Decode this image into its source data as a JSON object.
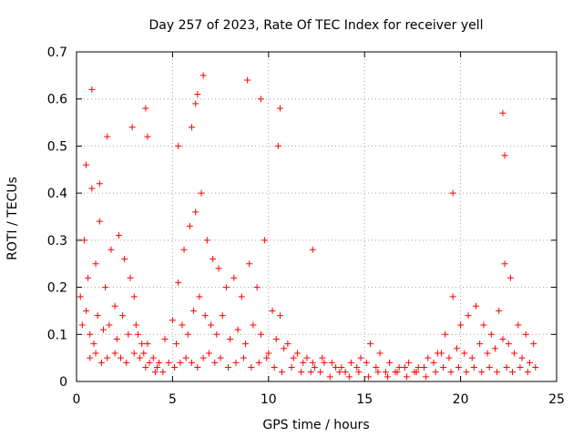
{
  "chart_data": {
    "type": "scatter",
    "title": "Day 257 of 2023, Rate Of TEC Index for receiver yell",
    "xlabel": "GPS time / hours",
    "ylabel": "ROTI / TECUs",
    "xlim": [
      0,
      25
    ],
    "ylim": [
      0,
      0.7
    ],
    "xticks": [
      0,
      5,
      10,
      15,
      20,
      25
    ],
    "yticks": [
      0,
      0.1,
      0.2,
      0.3,
      0.4,
      0.5,
      0.6,
      0.7
    ],
    "grid": true,
    "legend": "none",
    "series": [
      {
        "name": "ROTI",
        "color": "#ff0000",
        "marker": "plus",
        "x": [
          0.2,
          0.4,
          0.6,
          0.8,
          1.0,
          1.2,
          1.5,
          1.8,
          2.0,
          2.2,
          2.5,
          2.8,
          3.0,
          3.2,
          3.5,
          3.7,
          4.0,
          4.3,
          4.6,
          5.0,
          5.3,
          5.6,
          5.9,
          6.2,
          6.5,
          6.8,
          7.1,
          7.4,
          7.8,
          8.2,
          8.6,
          9.0,
          9.4,
          9.8,
          10.2,
          10.6,
          11.0,
          11.5,
          12.0,
          12.3,
          12.8,
          13.3,
          13.8,
          14.3,
          14.8,
          15.3,
          15.8,
          16.3,
          16.8,
          17.3,
          17.8,
          18.3,
          18.8,
          19.2,
          19.6,
          20.0,
          20.4,
          20.8,
          21.2,
          21.6,
          22.0,
          22.3,
          22.6,
          23.0,
          23.4,
          23.8,
          0.3,
          0.5,
          0.7,
          0.9,
          1.1,
          1.4,
          1.7,
          2.1,
          2.4,
          2.7,
          3.1,
          3.4,
          3.8,
          4.2,
          4.8,
          5.2,
          5.5,
          5.8,
          6.1,
          6.4,
          6.7,
          7.0,
          7.3,
          7.6,
          8.0,
          8.4,
          8.8,
          9.2,
          9.6,
          10.0,
          10.4,
          10.8,
          11.3,
          11.8,
          12.4,
          12.9,
          13.5,
          14.0,
          14.6,
          15.1,
          15.6,
          16.1,
          16.6,
          17.1,
          17.6,
          18.1,
          18.6,
          19.0,
          19.4,
          19.8,
          20.2,
          20.6,
          21.0,
          21.4,
          21.8,
          22.2,
          22.5,
          22.8,
          23.2,
          23.6,
          0.7,
          1.0,
          1.3,
          1.6,
          2.0,
          2.3,
          2.6,
          3.0,
          3.3,
          3.6,
          4.1,
          4.5,
          5.1,
          5.4,
          5.7,
          6.0,
          6.3,
          6.6,
          6.9,
          7.2,
          7.5,
          7.9,
          8.3,
          8.7,
          9.1,
          9.5,
          9.9,
          10.3,
          10.7,
          11.2,
          11.7,
          12.2,
          12.7,
          13.2,
          13.7,
          14.2,
          14.7,
          15.2,
          15.7,
          16.2,
          16.7,
          17.2,
          17.7,
          18.2,
          18.7,
          19.1,
          19.5,
          19.9,
          20.3,
          20.7,
          21.1,
          21.5,
          21.9,
          22.4,
          22.7,
          23.1,
          23.5,
          23.9,
          0.8,
          1.6,
          2.9,
          3.6,
          3.7,
          6.2,
          6.3,
          6.6,
          8.9,
          9.6,
          10.5,
          10.6,
          12.3,
          19.6,
          22.2,
          22.3,
          6.0,
          5.3,
          0.5,
          1.2
        ],
        "y": [
          0.18,
          0.3,
          0.22,
          0.41,
          0.25,
          0.34,
          0.2,
          0.28,
          0.16,
          0.31,
          0.26,
          0.22,
          0.18,
          0.1,
          0.06,
          0.08,
          0.05,
          0.04,
          0.09,
          0.13,
          0.21,
          0.28,
          0.33,
          0.36,
          0.4,
          0.3,
          0.26,
          0.24,
          0.2,
          0.22,
          0.18,
          0.25,
          0.2,
          0.3,
          0.15,
          0.14,
          0.08,
          0.06,
          0.05,
          0.04,
          0.05,
          0.04,
          0.03,
          0.04,
          0.05,
          0.08,
          0.06,
          0.04,
          0.03,
          0.04,
          0.03,
          0.05,
          0.06,
          0.1,
          0.18,
          0.12,
          0.14,
          0.16,
          0.12,
          0.1,
          0.15,
          0.25,
          0.22,
          0.12,
          0.1,
          0.08,
          0.12,
          0.15,
          0.1,
          0.08,
          0.14,
          0.11,
          0.12,
          0.09,
          0.14,
          0.1,
          0.12,
          0.08,
          0.04,
          0.03,
          0.04,
          0.08,
          0.12,
          0.1,
          0.15,
          0.18,
          0.14,
          0.12,
          0.1,
          0.14,
          0.09,
          0.11,
          0.08,
          0.12,
          0.1,
          0.06,
          0.09,
          0.07,
          0.05,
          0.04,
          0.03,
          0.04,
          0.03,
          0.02,
          0.03,
          0.04,
          0.03,
          0.02,
          0.02,
          0.03,
          0.02,
          0.03,
          0.04,
          0.06,
          0.05,
          0.07,
          0.06,
          0.05,
          0.08,
          0.06,
          0.07,
          0.09,
          0.08,
          0.06,
          0.05,
          0.04,
          0.05,
          0.06,
          0.04,
          0.05,
          0.06,
          0.05,
          0.04,
          0.06,
          0.05,
          0.03,
          0.02,
          0.02,
          0.03,
          0.04,
          0.05,
          0.04,
          0.03,
          0.05,
          0.06,
          0.04,
          0.05,
          0.03,
          0.04,
          0.05,
          0.03,
          0.04,
          0.05,
          0.03,
          0.02,
          0.03,
          0.02,
          0.02,
          0.02,
          0.01,
          0.02,
          0.01,
          0.02,
          0.01,
          0.02,
          0.01,
          0.02,
          0.01,
          0.02,
          0.01,
          0.02,
          0.03,
          0.02,
          0.03,
          0.02,
          0.03,
          0.02,
          0.03,
          0.02,
          0.03,
          0.02,
          0.03,
          0.02,
          0.03,
          0.62,
          0.52,
          0.54,
          0.58,
          0.52,
          0.59,
          0.61,
          0.65,
          0.64,
          0.6,
          0.5,
          0.58,
          0.28,
          0.4,
          0.57,
          0.48,
          0.54,
          0.5,
          0.46,
          0.42
        ]
      }
    ]
  }
}
